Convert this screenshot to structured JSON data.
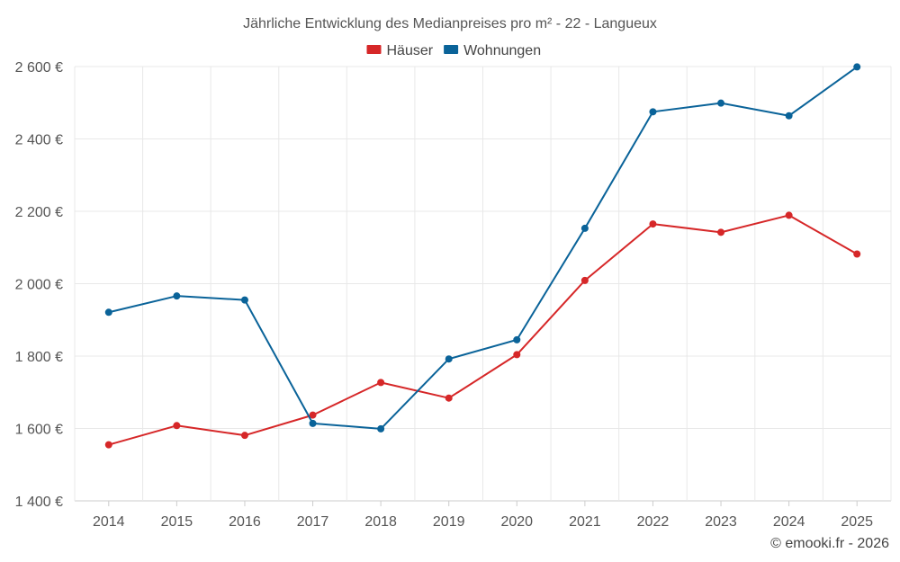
{
  "chart_data": {
    "type": "line",
    "title": "Jährliche Entwicklung des Medianpreises pro m² - 22 - Langueux",
    "categories": [
      "2014",
      "2015",
      "2016",
      "2017",
      "2018",
      "2019",
      "2020",
      "2021",
      "2022",
      "2023",
      "2024",
      "2025"
    ],
    "series": [
      {
        "name": "Häuser",
        "color": "#d62728",
        "values": [
          1555,
          1608,
          1581,
          1637,
          1727,
          1684,
          1804,
          2009,
          2165,
          2142,
          2189,
          2082
        ]
      },
      {
        "name": "Wohnungen",
        "color": "#0a6399",
        "values": [
          1921,
          1966,
          1955,
          1614,
          1599,
          1792,
          1845,
          2153,
          2475,
          2499,
          2464,
          2599
        ]
      }
    ],
    "ylim": [
      1400,
      2600
    ],
    "yticks": [
      1400,
      1600,
      1800,
      2000,
      2200,
      2400,
      2600
    ],
    "ytick_labels": [
      "1 400 €",
      "1 600 €",
      "1 800 €",
      "2 000 €",
      "2 200 €",
      "2 400 €",
      "2 600 €"
    ],
    "xlabel": "",
    "ylabel": "",
    "legend_position": "top-center",
    "grid": true
  },
  "credit": "© emooki.fr - 2026"
}
